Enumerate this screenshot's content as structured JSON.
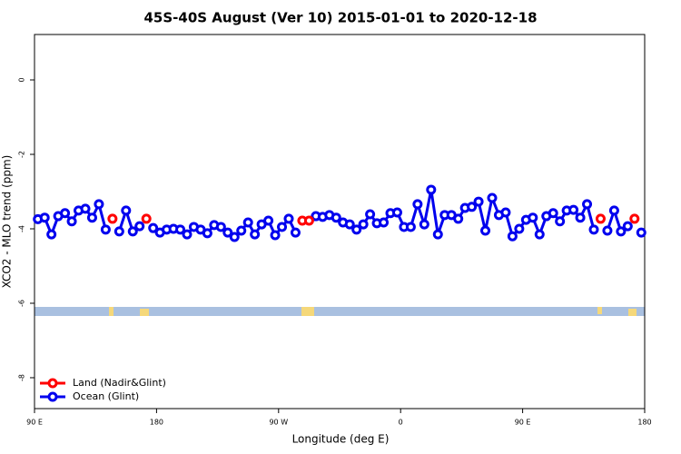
{
  "chart_data": {
    "type": "line",
    "title": "45S-40S August (Ver 10)   2015-01-01 to 2020-12-18",
    "x_label": "Longitude (deg E)",
    "y_label": "XCO2 - MLO trend (ppm)",
    "xlim": [
      90,
      540
    ],
    "xticks": [
      {
        "value": 90,
        "label": "90 E"
      },
      {
        "value": 180,
        "label": "180"
      },
      {
        "value": 270,
        "label": "90 W"
      },
      {
        "value": 360,
        "label": "0"
      },
      {
        "value": 450,
        "label": "90 E"
      },
      {
        "value": 540,
        "label": "180"
      }
    ],
    "ylim": [
      -8.83,
      1.22
    ],
    "yticks": [
      0,
      -2,
      -4,
      -6,
      -8
    ],
    "legend": "bottom left",
    "x": [
      92.5,
      97.5,
      102.5,
      107.5,
      112.5,
      117.5,
      122.5,
      127.5,
      132.5,
      137.5,
      142.5,
      147.5,
      152.5,
      157.5,
      162.5,
      167.5,
      172.5,
      177.5,
      182.5,
      187.5,
      192.5,
      197.5,
      202.5,
      207.5,
      212.5,
      217.5,
      222.5,
      227.5,
      232.5,
      237.5,
      242.5,
      247.5,
      252.5,
      257.5,
      262.5,
      267.5,
      272.5,
      277.5,
      282.5,
      287.5,
      292.5,
      297.5,
      302.5,
      307.5,
      312.5,
      317.5,
      322.5,
      327.5,
      332.5,
      337.5,
      342.5,
      347.5,
      352.5,
      357.5,
      362.5,
      367.5,
      372.5,
      377.5,
      382.5,
      387.5,
      392.5,
      397.5,
      402.5,
      407.5,
      412.5,
      417.5,
      422.5,
      427.5,
      432.5,
      437.5,
      442.5,
      447.5,
      452.5,
      457.5,
      462.5,
      467.5,
      472.5,
      477.5,
      482.5,
      487.5,
      492.5,
      497.5,
      502.5,
      507.5,
      512.5,
      517.5,
      522.5,
      527.5,
      532.5,
      537.5
    ],
    "series": [
      {
        "name": "Land (Nadir&Glint)",
        "color": "#ff0000",
        "values": [
          null,
          null,
          null,
          null,
          null,
          null,
          null,
          null,
          null,
          null,
          null,
          -3.73,
          null,
          null,
          null,
          null,
          -3.73,
          null,
          null,
          null,
          null,
          null,
          null,
          null,
          null,
          null,
          null,
          null,
          null,
          null,
          null,
          null,
          null,
          null,
          null,
          null,
          null,
          null,
          null,
          -3.78,
          -3.78,
          null,
          null,
          null,
          null,
          null,
          null,
          null,
          null,
          null,
          null,
          null,
          null,
          null,
          null,
          null,
          null,
          null,
          null,
          null,
          null,
          null,
          null,
          null,
          null,
          null,
          null,
          null,
          null,
          null,
          null,
          null,
          null,
          null,
          null,
          null,
          null,
          null,
          null,
          null,
          null,
          null,
          null,
          -3.73,
          null,
          null,
          null,
          null,
          -3.73,
          null
        ]
      },
      {
        "name": "Ocean (Glint)",
        "color": "#0000ee",
        "values": [
          -3.74,
          -3.7,
          -4.15,
          -3.66,
          -3.58,
          -3.8,
          -3.51,
          -3.46,
          -3.7,
          -3.34,
          -4.02,
          null,
          -4.07,
          -3.51,
          -4.07,
          -3.93,
          null,
          -3.98,
          -4.1,
          -4.02,
          -4.0,
          -4.02,
          -4.15,
          -3.95,
          -4.02,
          -4.12,
          -3.9,
          -3.95,
          -4.1,
          -4.22,
          -4.05,
          -3.83,
          -4.15,
          -3.88,
          -3.78,
          -4.17,
          -3.95,
          -3.73,
          -4.1,
          null,
          null,
          -3.66,
          -3.68,
          -3.63,
          -3.7,
          -3.83,
          -3.88,
          -4.02,
          -3.88,
          -3.61,
          -3.85,
          -3.83,
          -3.58,
          -3.56,
          -3.95,
          -3.95,
          -3.34,
          -3.88,
          -2.95,
          -4.15,
          -3.63,
          -3.63,
          -3.73,
          -3.44,
          -3.41,
          -3.27,
          -4.05,
          -3.17,
          -3.63,
          -3.56,
          -4.2,
          -4.0,
          -3.76,
          -3.7,
          -4.15,
          -3.66,
          -3.58,
          -3.8,
          -3.51,
          -3.49,
          -3.7,
          -3.34,
          -4.02,
          null,
          -4.05,
          -3.51,
          -4.07,
          -3.93,
          null,
          -4.1
        ]
      }
    ]
  }
}
